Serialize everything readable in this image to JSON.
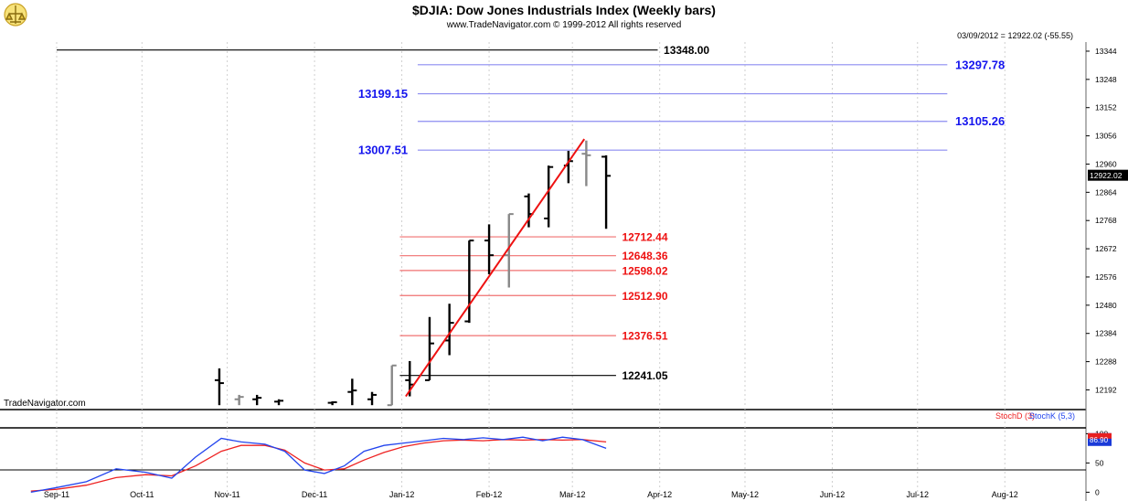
{
  "header": {
    "title": "$DJIA:  Dow Jones Industrials Index  (Weekly bars)",
    "subtitle": "www.TradeNavigator.com © 1999-2012 All rights reserved",
    "quote": "03/09/2012 = 12922.02 (-55.55)",
    "watermark": "TradeNavigator.com",
    "logo": "trade-navigator-logo"
  },
  "colors": {
    "blue": "#1515ee",
    "red": "#ee1111",
    "black": "#000000",
    "up_bar": "#000000",
    "down_bar": "#888888",
    "line_blue": "#8c8cf0",
    "line_red": "#f07070",
    "stoch_d": "#ee2222",
    "stoch_k": "#2244ee"
  },
  "chart_data": [
    {
      "type": "ohlc",
      "title": "$DJIA:  Dow Jones Industrials Index  (Weekly bars)",
      "y_axis": {
        "ticks": [
          12192,
          12288,
          12384,
          12480,
          12576,
          12672,
          12768,
          12864,
          12960,
          13056,
          13152,
          13248,
          13344
        ],
        "ylim": [
          12125,
          13375
        ],
        "last_price_label": "12922.02"
      },
      "x_axis": {
        "months": [
          {
            "label": "Sep-11",
            "week": 0
          },
          {
            "label": "Oct-11",
            "week": 4.3
          },
          {
            "label": "Nov-11",
            "week": 8.6
          },
          {
            "label": "Dec-11",
            "week": 13
          },
          {
            "label": "Jan-12",
            "week": 17.4
          },
          {
            "label": "Feb-12",
            "week": 21.8
          },
          {
            "label": "Mar-12",
            "week": 26
          },
          {
            "label": "Apr-12",
            "week": 30.4
          },
          {
            "label": "May-12",
            "week": 34.7
          },
          {
            "label": "Jun-12",
            "week": 39.1
          },
          {
            "label": "Jul-12",
            "week": 43.4
          },
          {
            "label": "Aug-12",
            "week": 47.8
          }
        ]
      },
      "bars": [
        {
          "week": 8.2,
          "high": 12265,
          "low": 12140,
          "open": 12225,
          "close": 12215,
          "dir": "up"
        },
        {
          "week": 9.2,
          "high": 12175,
          "low": 12140,
          "open": 12160,
          "close": 12168,
          "dir": "down"
        },
        {
          "week": 10.1,
          "high": 12175,
          "low": 12140,
          "open": 12160,
          "close": 12165,
          "dir": "up"
        },
        {
          "week": 11.2,
          "high": 12160,
          "low": 12140,
          "open": 12152,
          "close": 12155,
          "dir": "up"
        },
        {
          "week": 13.9,
          "high": 12153,
          "low": 12140,
          "open": 12148,
          "close": 12150,
          "dir": "up"
        },
        {
          "week": 14.9,
          "high": 12230,
          "low": 12140,
          "open": 12185,
          "close": 12190,
          "dir": "up"
        },
        {
          "week": 15.9,
          "high": 12185,
          "low": 12140,
          "open": 12160,
          "close": 12175,
          "dir": "up"
        },
        {
          "week": 16.9,
          "high": 12275,
          "low": 12140,
          "open": 12140,
          "close": 12275,
          "dir": "down"
        },
        {
          "week": 17.8,
          "high": 12290,
          "low": 12170,
          "open": 12225,
          "close": 12210,
          "dir": "up"
        },
        {
          "week": 18.8,
          "high": 12440,
          "low": 12225,
          "open": 12225,
          "close": 12350,
          "dir": "up"
        },
        {
          "week": 19.8,
          "high": 12485,
          "low": 12310,
          "open": 12360,
          "close": 12420,
          "dir": "up"
        },
        {
          "week": 20.8,
          "high": 12700,
          "low": 12420,
          "open": 12425,
          "close": 12700,
          "dir": "up"
        },
        {
          "week": 21.8,
          "high": 12755,
          "low": 12585,
          "open": 12700,
          "close": 12650,
          "dir": "up"
        },
        {
          "week": 22.8,
          "high": 12790,
          "low": 12540,
          "open": 12650,
          "close": 12790,
          "dir": "down"
        },
        {
          "week": 23.8,
          "high": 12860,
          "low": 12745,
          "open": 12850,
          "close": 12790,
          "dir": "up"
        },
        {
          "week": 24.8,
          "high": 12955,
          "low": 12745,
          "open": 12775,
          "close": 12950,
          "dir": "up"
        },
        {
          "week": 25.8,
          "high": 13005,
          "low": 12895,
          "open": 12955,
          "close": 12970,
          "dir": "up"
        },
        {
          "week": 26.7,
          "high": 13040,
          "low": 12885,
          "open": 12995,
          "close": 12990,
          "dir": "down"
        },
        {
          "week": 27.7,
          "high": 12990,
          "low": 12740,
          "open": 12985,
          "close": 12920,
          "dir": "up"
        }
      ],
      "trendline": {
        "from": {
          "week": 17.6,
          "price": 12170
        },
        "to": {
          "week": 26.6,
          "price": 13045
        }
      },
      "levels": [
        {
          "price": 13348.0,
          "label": "13348.00",
          "color": "black",
          "x_from": 0,
          "x_to": 30.3,
          "label_at": 30.6,
          "label_side": "right"
        },
        {
          "price": 13297.78,
          "label": "13297.78",
          "color": "blue",
          "x_from": 18.2,
          "x_to": 44.9,
          "label_at": 45.3,
          "label_side": "right"
        },
        {
          "price": 13199.15,
          "label": "13199.15",
          "color": "blue",
          "x_from": 18.2,
          "x_to": 44.9,
          "label_at": 17.7,
          "label_side": "left"
        },
        {
          "price": 13105.26,
          "label": "13105.26",
          "color": "blue",
          "x_from": 18.2,
          "x_to": 44.9,
          "label_at": 45.3,
          "label_side": "right"
        },
        {
          "price": 13007.51,
          "label": "13007.51",
          "color": "blue",
          "x_from": 18.2,
          "x_to": 44.9,
          "label_at": 17.7,
          "label_side": "left"
        },
        {
          "price": 12712.44,
          "label": "12712.44",
          "color": "red",
          "x_from": 17.3,
          "x_to": 28.2,
          "label_at": 28.5,
          "label_side": "right"
        },
        {
          "price": 12648.36,
          "label": "12648.36",
          "color": "red",
          "x_from": 17.3,
          "x_to": 28.2,
          "label_at": 28.5,
          "label_side": "right"
        },
        {
          "price": 12598.02,
          "label": "12598.02",
          "color": "red",
          "x_from": 17.3,
          "x_to": 28.2,
          "label_at": 28.5,
          "label_side": "right"
        },
        {
          "price": 12512.9,
          "label": "12512.90",
          "color": "red",
          "x_from": 17.3,
          "x_to": 28.2,
          "label_at": 28.5,
          "label_side": "right"
        },
        {
          "price": 12376.51,
          "label": "12376.51",
          "color": "red",
          "x_from": 17.3,
          "x_to": 28.2,
          "label_at": 28.5,
          "label_side": "right"
        },
        {
          "price": 12241.05,
          "label": "12241.05",
          "color": "black",
          "x_from": 17.3,
          "x_to": 28.2,
          "label_at": 28.5,
          "label_side": "right"
        }
      ]
    },
    {
      "type": "line",
      "title": "",
      "legend": [
        "StochD (3)",
        "StochK (5,3)"
      ],
      "y_axis": {
        "ticks": [
          0,
          50,
          100
        ],
        "ylim": [
          -15,
          110
        ]
      },
      "last_value_label": "86.90",
      "series": [
        {
          "name": "StochD (3)",
          "points": [
            [
              -1.3,
              2
            ],
            [
              0,
              5
            ],
            [
              1.5,
              12
            ],
            [
              3,
              25
            ],
            [
              4.5,
              30
            ],
            [
              5.8,
              28
            ],
            [
              7,
              45
            ],
            [
              8.3,
              70
            ],
            [
              9.3,
              80
            ],
            [
              10.5,
              80
            ],
            [
              11.5,
              72
            ],
            [
              12.5,
              50
            ],
            [
              13.5,
              38
            ],
            [
              14.5,
              40
            ],
            [
              15.5,
              55
            ],
            [
              16.5,
              68
            ],
            [
              17.5,
              78
            ],
            [
              18.5,
              84
            ],
            [
              19.5,
              88
            ],
            [
              20.5,
              89
            ],
            [
              21.5,
              88
            ],
            [
              22.5,
              90
            ],
            [
              23.5,
              89
            ],
            [
              24.5,
              90
            ],
            [
              25.5,
              89
            ],
            [
              26.5,
              90
            ],
            [
              27.7,
              86
            ]
          ]
        },
        {
          "name": "StochK (5,3)",
          "points": [
            [
              -1.3,
              0
            ],
            [
              0,
              8
            ],
            [
              1.5,
              18
            ],
            [
              3,
              40
            ],
            [
              4.5,
              34
            ],
            [
              5.8,
              24
            ],
            [
              7,
              60
            ],
            [
              8.3,
              92
            ],
            [
              9.3,
              86
            ],
            [
              10.5,
              82
            ],
            [
              11.5,
              70
            ],
            [
              12.5,
              38
            ],
            [
              13.5,
              32
            ],
            [
              14.5,
              45
            ],
            [
              15.5,
              70
            ],
            [
              16.5,
              80
            ],
            [
              17.5,
              84
            ],
            [
              18.5,
              88
            ],
            [
              19.5,
              92
            ],
            [
              20.5,
              90
            ],
            [
              21.5,
              93
            ],
            [
              22.5,
              90
            ],
            [
              23.5,
              94
            ],
            [
              24.5,
              88
            ],
            [
              25.5,
              94
            ],
            [
              26.5,
              90
            ],
            [
              27.7,
              75
            ]
          ]
        }
      ]
    }
  ]
}
